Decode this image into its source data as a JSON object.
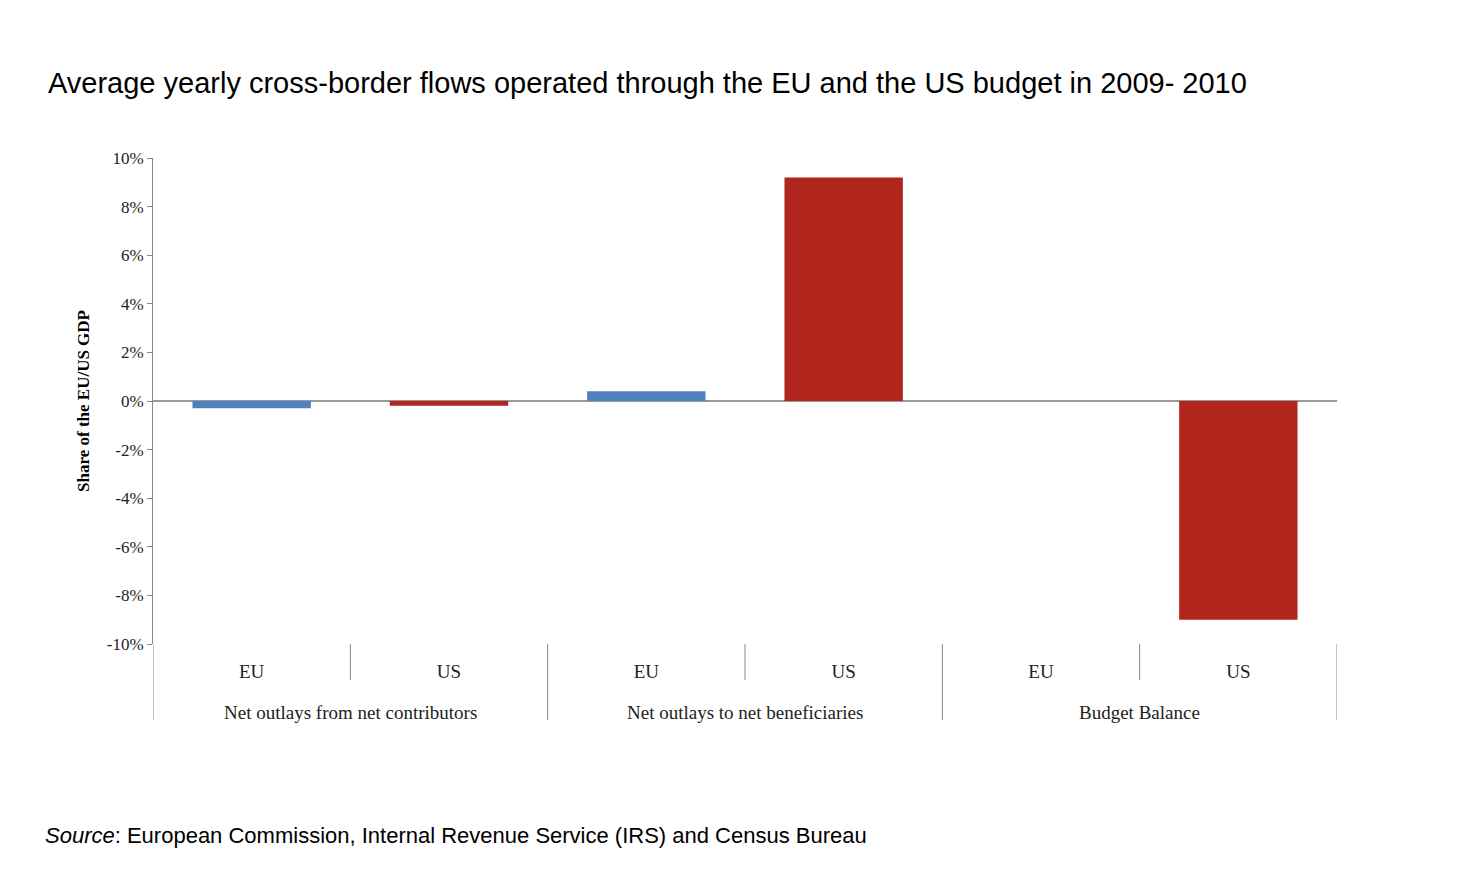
{
  "chart_data": {
    "type": "bar",
    "title": "Average yearly cross-border flows operated through the EU and the US budget in 2009- 2010",
    "y_label": "Share of the EU/US GDP",
    "categories": [
      "EU",
      "US",
      "EU",
      "US",
      "EU",
      "US"
    ],
    "groups": [
      "Net outlays from net contributors",
      "Net outlays to net beneficiaries",
      "Budget Balance"
    ],
    "values": [
      -0.3,
      -0.2,
      0.4,
      9.2,
      0,
      -9.0
    ],
    "colors": [
      "#4f81bd",
      "#b0261c",
      "#4f81bd",
      "#b0261c",
      "#4f81bd",
      "#b0261c"
    ],
    "ylim": [
      -10,
      10
    ],
    "yticks": [
      {
        "value": -10,
        "label": "-10%"
      },
      {
        "value": -8,
        "label": "-8%"
      },
      {
        "value": -6,
        "label": "-6%"
      },
      {
        "value": -4,
        "label": "-4%"
      },
      {
        "value": -2,
        "label": "-2%"
      },
      {
        "value": 0,
        "label": "0%"
      },
      {
        "value": 2,
        "label": "2%"
      },
      {
        "value": 4,
        "label": "4%"
      },
      {
        "value": 6,
        "label": "6%"
      },
      {
        "value": 8,
        "label": "8%"
      },
      {
        "value": 10,
        "label": "10%"
      }
    ],
    "grid": false,
    "data_labels": false,
    "source": "Source: European Commission, Internal Revenue Service (IRS) and Census Bureau"
  }
}
